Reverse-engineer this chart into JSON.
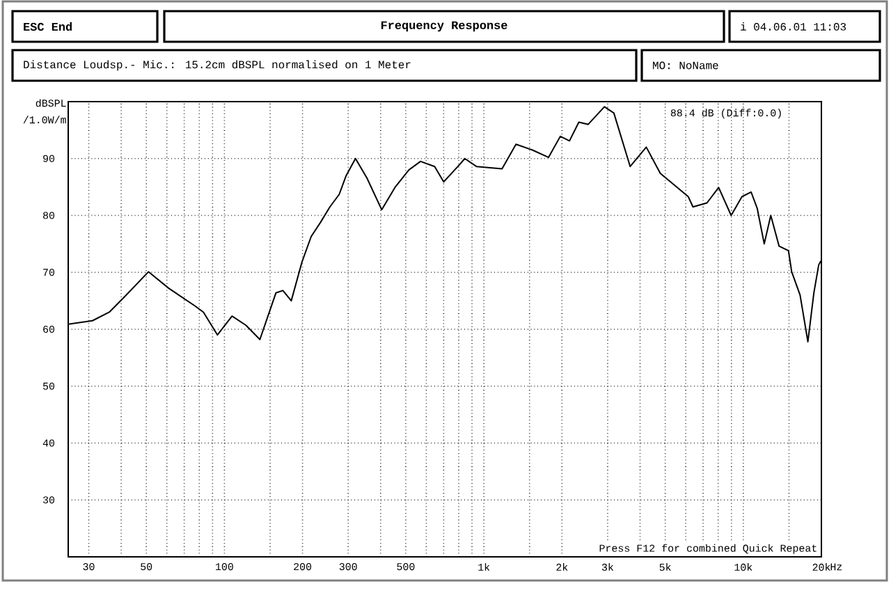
{
  "chart_data": {
    "type": "line",
    "title": "Frequency Response",
    "ylabel": "dBSPL /1.0W/m",
    "annotations": [
      "ESC End",
      "i 04.06.01 11:03",
      "Distance Loudsp.- Mic.: 15.2cm dBSPL normalised on 1 Meter",
      "MO: NoName",
      "88.4 dB (Diff:0.0)",
      "Press F12 for combined Quick Repeat"
    ],
    "x": [
      25,
      31,
      36,
      41,
      51,
      61,
      77,
      83,
      94,
      107,
      121,
      137,
      158,
      168,
      181,
      199,
      216,
      234,
      255,
      277,
      294,
      320,
      354,
      404,
      454,
      514,
      570,
      646,
      700,
      809,
      844,
      936,
      1038,
      1175,
      1330,
      1538,
      1776,
      1971,
      2138,
      2323,
      2525,
      2915,
      3170,
      3664,
      4227,
      4786,
      6134,
      6397,
      7244,
      8035,
      8977,
      9880,
      10720,
      11320,
      12040,
      12760,
      13740,
      14930,
      15360,
      16550,
      17740,
      18710,
      19530,
      19900
    ],
    "values": [
      60.9,
      61.5,
      63,
      65.6,
      70.1,
      67.2,
      64.1,
      63,
      59,
      62.3,
      60.7,
      58.2,
      66.4,
      66.8,
      65,
      71.8,
      76.3,
      78.7,
      81.5,
      83.7,
      86.9,
      90,
      86.6,
      81,
      84.9,
      88,
      89.5,
      88.6,
      85.9,
      89,
      90,
      88.6,
      88.4,
      88.2,
      92.5,
      91.5,
      90.2,
      93.9,
      93.1,
      96.4,
      96,
      99.1,
      98,
      88.6,
      92,
      87.4,
      83.3,
      81.5,
      82.2,
      84.9,
      80,
      83.3,
      84.1,
      81.2,
      75,
      80,
      74.6,
      73.8,
      70.1,
      66,
      57.8,
      66.4,
      71.3,
      72
    ],
    "color": "#000000",
    "line_style": "solid",
    "xlim": [
      25,
      20000
    ],
    "ylim": [
      20,
      100
    ],
    "xticks": [
      30,
      {
        "value": 40,
        "label": null
      },
      50,
      {
        "value": 60,
        "label": null
      },
      {
        "value": 70,
        "label": null
      },
      {
        "value": 80,
        "label": null
      },
      {
        "value": 90,
        "label": null
      },
      100,
      {
        "value": 150,
        "label": null
      },
      200,
      300,
      {
        "value": 400,
        "label": null
      },
      500,
      {
        "value": 600,
        "label": null
      },
      {
        "value": 700,
        "label": null
      },
      {
        "value": 800,
        "label": null
      },
      {
        "value": 900,
        "label": null
      },
      {
        "value": 1000,
        "label": "1k"
      },
      {
        "value": 1500,
        "label": null
      },
      {
        "value": 2000,
        "label": "2k"
      },
      {
        "value": 3000,
        "label": "3k"
      },
      {
        "value": 4000,
        "label": null
      },
      {
        "value": 5000,
        "label": "5k"
      },
      {
        "value": 6000,
        "label": null
      },
      {
        "value": 7000,
        "label": null
      },
      {
        "value": 8000,
        "label": null
      },
      {
        "value": 9000,
        "label": null
      },
      {
        "value": 10000,
        "label": "10k"
      },
      {
        "value": 15000,
        "label": null
      },
      {
        "value": 20000,
        "label": "20k"
      }
    ],
    "xlabel": "Hz",
    "yticks": [
      30,
      40,
      50,
      60,
      70,
      80,
      90
    ],
    "log": "x",
    "grid": true
  }
}
